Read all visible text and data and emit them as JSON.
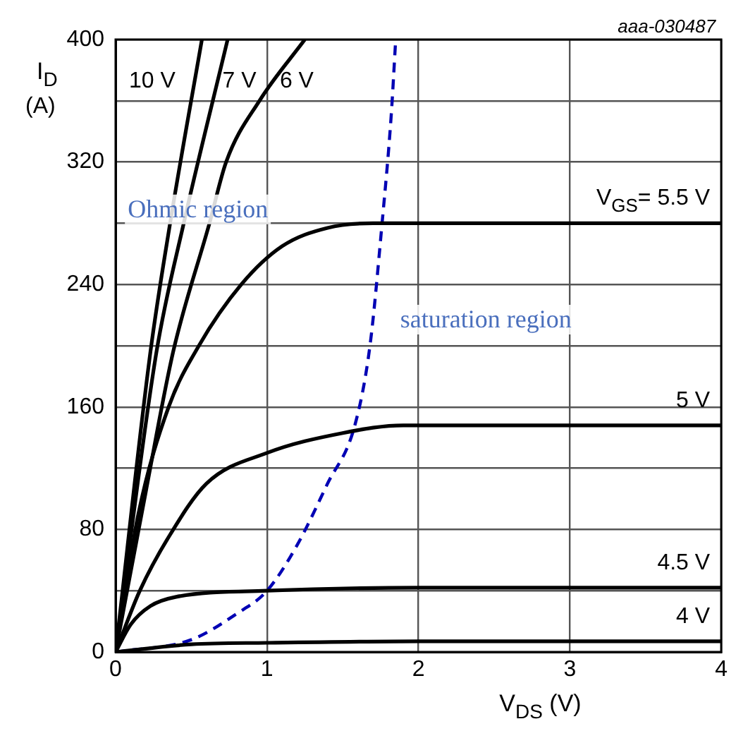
{
  "chart_data": {
    "type": "line",
    "xlabel": "V$_{DS}$ (V)",
    "ylabel": "I$_{D}$ (A)",
    "xlim": [
      0,
      4
    ],
    "xticks": [
      0,
      1,
      2,
      3,
      4
    ],
    "ylim": [
      0,
      400
    ],
    "yticks": [
      0,
      {
        "value": 40,
        "label": null
      },
      80,
      {
        "value": 120,
        "label": null
      },
      160,
      {
        "value": 200,
        "label": null
      },
      240,
      {
        "value": 280,
        "label": null
      },
      320,
      {
        "value": 360,
        "label": null
      },
      400
    ],
    "grid": true,
    "legend": false,
    "series": [
      {
        "name": "10 V",
        "color": "#000000",
        "x": [
          0,
          0.23,
          0.36,
          0.57
        ],
        "values": [
          0,
          196,
          280,
          400
        ]
      },
      {
        "name": "7 V",
        "color": "#000000",
        "x": [
          0,
          0.27,
          0.45,
          0.74
        ],
        "values": [
          0,
          196,
          280,
          400
        ]
      },
      {
        "name": "6 V",
        "color": "#000000",
        "x": [
          0,
          0.2,
          0.38,
          0.62,
          0.73,
          0.95,
          1.25
        ],
        "values": [
          0,
          105,
          196,
          280,
          320,
          360,
          400
        ]
      },
      {
        "name": "V$_{GS}$= 5.5 V",
        "color": "#000000",
        "x": [
          0,
          0.15,
          0.35,
          0.55,
          0.83,
          1.1,
          1.4,
          1.7,
          4
        ],
        "values": [
          0,
          90,
          160,
          200,
          240,
          265,
          277,
          280,
          280
        ]
      },
      {
        "name": "5 V",
        "color": "#000000",
        "x": [
          0,
          0.16,
          0.35,
          0.6,
          1.0,
          1.5,
          1.9,
          4
        ],
        "values": [
          0,
          40,
          75,
          110,
          130,
          143,
          148,
          148
        ]
      },
      {
        "name": "4.5 V",
        "color": "#000000",
        "x": [
          0,
          0.1,
          0.23,
          0.4,
          1.0,
          2.0,
          4
        ],
        "values": [
          0,
          18,
          30,
          36,
          40,
          42,
          42
        ]
      },
      {
        "name": "4 V",
        "color": "#000000",
        "x": [
          0,
          0.5,
          1.0,
          2.0,
          4
        ],
        "values": [
          0,
          5,
          6,
          7,
          7
        ]
      },
      {
        "color": "#0000b4",
        "line_style": "dashed",
        "x": [
          0,
          0.5,
          0.8,
          1.0,
          1.2,
          1.4,
          1.58,
          1.68,
          1.76,
          1.82,
          1.85
        ],
        "values": [
          0,
          8,
          25,
          40,
          70,
          110,
          148,
          200,
          280,
          350,
          400
        ]
      }
    ],
    "annotations": [
      "aaa-030487",
      "Ohmic region",
      "saturation region"
    ]
  }
}
